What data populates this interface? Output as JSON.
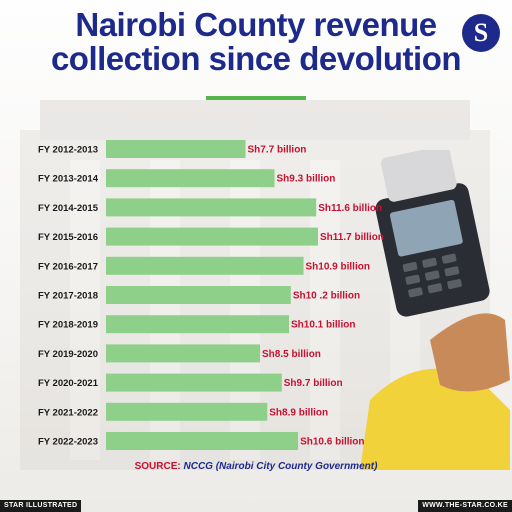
{
  "title_line1": "Nairobi County revenue",
  "title_line2": "collection since devolution",
  "logo_letter": "S",
  "source_label": "SOURCE:",
  "source_text": "NCCG (Nairobi City County Government)",
  "footer_left": "STAR ILLUSTRATED",
  "footer_right": "WWW.THE-STAR.CO.KE",
  "colors": {
    "title": "#1d2a8c",
    "bar": "#8ed08a",
    "value_label": "#c8102e",
    "accent": "#55b44a"
  },
  "chart_data": {
    "type": "bar",
    "orientation": "horizontal",
    "categories": [
      "FY 2012-2013",
      "FY 2013-2014",
      "FY 2014-2015",
      "FY 2015-2016",
      "FY 2016-2017",
      "FY 2017-2018",
      "FY 2018-2019",
      "FY 2019-2020",
      "FY 2020-2021",
      "FY 2021-2022",
      "FY 2022-2023"
    ],
    "values": [
      7.7,
      9.3,
      11.6,
      11.7,
      10.9,
      10.2,
      10.1,
      8.5,
      9.7,
      8.9,
      10.6
    ],
    "value_labels": [
      "Sh7.7 billion",
      "Sh9.3 billion",
      "Sh11.6 billion",
      "Sh11.7 billion",
      "Sh10.9 billion",
      "Sh10 .2 billion",
      "Sh10.1 billion",
      "Sh8.5 billion",
      "Sh9.7 billion",
      "Sh8.9 billion",
      "Sh10.6 billion"
    ],
    "title": "Nairobi County revenue collection since devolution",
    "xlabel": "",
    "ylabel": "",
    "xlim": [
      0,
      11.7
    ],
    "grid": false,
    "legend": "none"
  }
}
